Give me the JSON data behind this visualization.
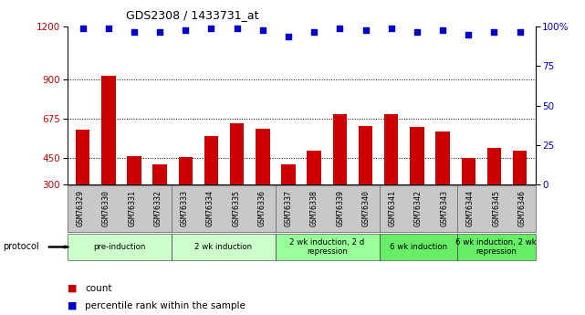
{
  "title": "GDS2308 / 1433731_at",
  "categories": [
    "GSM76329",
    "GSM76330",
    "GSM76331",
    "GSM76332",
    "GSM76333",
    "GSM76334",
    "GSM76335",
    "GSM76336",
    "GSM76337",
    "GSM76338",
    "GSM76339",
    "GSM76340",
    "GSM76341",
    "GSM76342",
    "GSM76343",
    "GSM76344",
    "GSM76345",
    "GSM76346"
  ],
  "bar_values": [
    610,
    920,
    460,
    415,
    455,
    575,
    650,
    615,
    415,
    490,
    700,
    635,
    700,
    630,
    600,
    450,
    510,
    490
  ],
  "dot_values": [
    99,
    99,
    97,
    97,
    98,
    99,
    99,
    98,
    94,
    97,
    99,
    98,
    99,
    97,
    98,
    95,
    97,
    97
  ],
  "bar_color": "#cc0000",
  "dot_color": "#0000cc",
  "ylim_left": [
    300,
    1200
  ],
  "ylim_right": [
    0,
    100
  ],
  "yticks_left": [
    300,
    450,
    675,
    900,
    1200
  ],
  "yticks_right": [
    0,
    25,
    50,
    75,
    100
  ],
  "grid_values": [
    450,
    675,
    900
  ],
  "protocol_groups": [
    {
      "label": "pre-induction",
      "start": 0,
      "end": 3,
      "color": "#ccffcc"
    },
    {
      "label": "2 wk induction",
      "start": 4,
      "end": 7,
      "color": "#ccffcc"
    },
    {
      "label": "2 wk induction, 2 d\nrepression",
      "start": 8,
      "end": 11,
      "color": "#99ff99"
    },
    {
      "label": "6 wk induction",
      "start": 12,
      "end": 14,
      "color": "#66ee66"
    },
    {
      "label": "6 wk induction, 2 wk\nrepression",
      "start": 15,
      "end": 17,
      "color": "#66ee66"
    }
  ],
  "legend_count_label": "count",
  "legend_pct_label": "percentile rank within the sample",
  "protocol_label": "protocol",
  "bg_color": "#ffffff",
  "tick_bg_color": "#c8c8c8"
}
